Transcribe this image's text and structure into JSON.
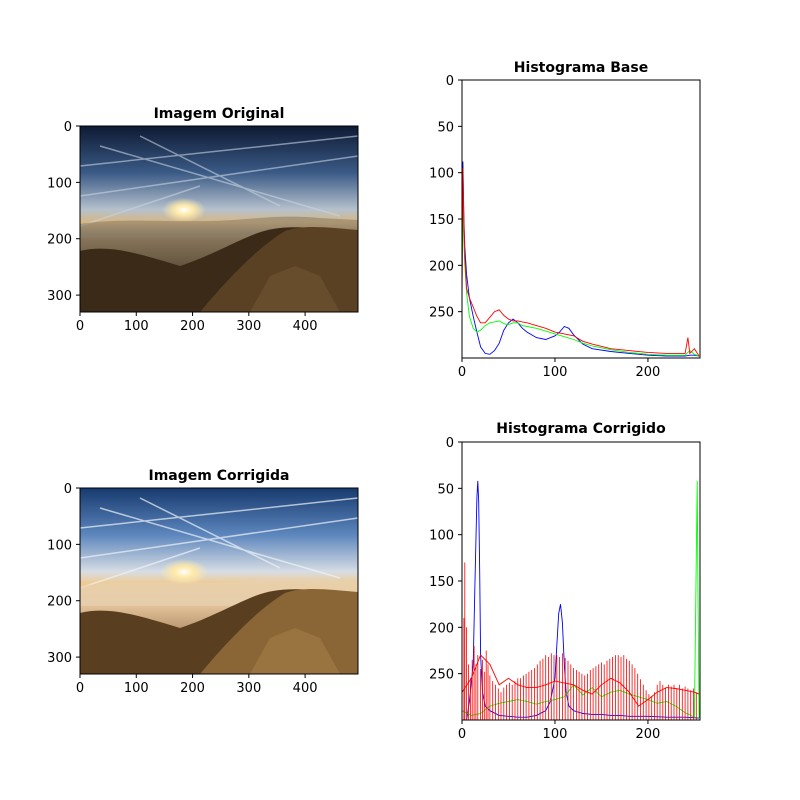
{
  "figure": {
    "background": "#ffffff"
  },
  "panels": [
    {
      "kind": "image",
      "id": "original",
      "title": "Imagem Original",
      "xlim": [
        0,
        494
      ],
      "ylim": [
        0,
        330
      ],
      "xticks": [
        0,
        100,
        200,
        300,
        400
      ],
      "yticks": [
        0,
        100,
        200,
        300
      ],
      "image_variant": "original"
    },
    {
      "kind": "image",
      "id": "corrected",
      "title": "Imagem Corrigida",
      "xlim": [
        0,
        494
      ],
      "ylim": [
        0,
        330
      ],
      "xticks": [
        0,
        100,
        200,
        300,
        400
      ],
      "yticks": [
        0,
        100,
        200,
        300
      ],
      "image_variant": "corrected"
    }
  ],
  "chart_data": [
    {
      "type": "line",
      "title": "Histograma Base",
      "xlim": [
        0,
        256
      ],
      "ylim": [
        0,
        300
      ],
      "y_inverted": true,
      "xticks": [
        0,
        100,
        200
      ],
      "yticks": [
        0,
        50,
        100,
        150,
        200,
        250
      ],
      "grid": false,
      "series": [
        {
          "color": "#0000ff",
          "x": [
            0,
            1,
            2,
            3,
            5,
            8,
            12,
            16,
            20,
            25,
            30,
            35,
            40,
            45,
            50,
            55,
            60,
            65,
            70,
            80,
            90,
            100,
            105,
            110,
            115,
            120,
            130,
            140,
            160,
            180,
            200,
            220,
            240,
            245,
            250,
            255
          ],
          "y": [
            200,
            88,
            150,
            180,
            210,
            235,
            255,
            272,
            288,
            295,
            296,
            292,
            284,
            270,
            262,
            258,
            262,
            268,
            272,
            278,
            280,
            276,
            272,
            266,
            268,
            275,
            285,
            290,
            293,
            295,
            297,
            298,
            298,
            297,
            297,
            298
          ]
        },
        {
          "color": "#00ff00",
          "x": [
            0,
            1,
            2,
            3,
            5,
            8,
            12,
            16,
            20,
            25,
            30,
            35,
            40,
            45,
            50,
            55,
            60,
            65,
            70,
            80,
            90,
            100,
            110,
            120,
            130,
            140,
            160,
            180,
            200,
            220,
            240,
            245,
            250,
            255
          ],
          "y": [
            220,
            140,
            175,
            200,
            230,
            255,
            268,
            272,
            270,
            265,
            262,
            261,
            260,
            263,
            264,
            262,
            262,
            265,
            266,
            268,
            271,
            274,
            277,
            280,
            284,
            287,
            291,
            294,
            296,
            297,
            297,
            292,
            296,
            298
          ]
        },
        {
          "color": "#ff0000",
          "x": [
            0,
            1,
            2,
            3,
            5,
            8,
            12,
            16,
            20,
            25,
            30,
            35,
            40,
            45,
            50,
            55,
            60,
            65,
            70,
            80,
            90,
            100,
            110,
            120,
            130,
            140,
            160,
            180,
            200,
            220,
            240,
            243,
            245,
            250,
            255
          ],
          "y": [
            240,
            95,
            155,
            190,
            225,
            235,
            245,
            255,
            262,
            262,
            256,
            250,
            248,
            254,
            258,
            260,
            260,
            261,
            262,
            265,
            268,
            272,
            274,
            276,
            282,
            285,
            290,
            292,
            294,
            295,
            295,
            278,
            295,
            290,
            298
          ]
        }
      ]
    },
    {
      "type": "line",
      "title": "Histograma Corrigido",
      "xlim": [
        0,
        256
      ],
      "ylim": [
        0,
        300
      ],
      "y_inverted": true,
      "xticks": [
        0,
        100,
        200
      ],
      "yticks": [
        50,
        100,
        150,
        200,
        250
      ],
      "extra_yticks_top": [
        0
      ],
      "grid": false,
      "series": [
        {
          "color": "#0000ff",
          "x": [
            0,
            5,
            8,
            12,
            14,
            16,
            17,
            18,
            19,
            20,
            22,
            25,
            30,
            40,
            50,
            60,
            70,
            80,
            90,
            95,
            100,
            102,
            104,
            106,
            108,
            110,
            112,
            115,
            120,
            130,
            140,
            150,
            160,
            170,
            180,
            200,
            220,
            240,
            255
          ],
          "y": [
            300,
            300,
            280,
            240,
            150,
            60,
            42,
            65,
            140,
            230,
            270,
            285,
            290,
            295,
            296,
            297,
            297,
            295,
            290,
            280,
            255,
            220,
            185,
            175,
            195,
            240,
            270,
            285,
            290,
            293,
            294,
            294,
            295,
            295,
            296,
            296,
            297,
            297,
            298
          ]
        },
        {
          "color": "#00ff00",
          "x": [
            0,
            10,
            20,
            30,
            40,
            50,
            60,
            70,
            80,
            90,
            100,
            110,
            120,
            130,
            140,
            150,
            160,
            170,
            180,
            190,
            200,
            210,
            220,
            230,
            240,
            250,
            253,
            254,
            255
          ],
          "y": [
            290,
            295,
            293,
            285,
            282,
            280,
            278,
            280,
            283,
            280,
            278,
            275,
            262,
            273,
            265,
            275,
            270,
            268,
            272,
            275,
            278,
            282,
            280,
            285,
            292,
            297,
            42,
            180,
            298
          ]
        },
        {
          "color": "#ff0000",
          "mode": "dense",
          "x": [
            0,
            10,
            20,
            30,
            40,
            50,
            60,
            70,
            80,
            90,
            100,
            110,
            120,
            130,
            140,
            150,
            160,
            170,
            180,
            190,
            200,
            210,
            220,
            230,
            240,
            250,
            255
          ],
          "y": [
            270,
            255,
            230,
            240,
            262,
            255,
            262,
            265,
            265,
            262,
            258,
            260,
            262,
            268,
            272,
            262,
            255,
            260,
            270,
            285,
            278,
            270,
            265,
            266,
            268,
            270,
            272
          ],
          "spikes": [
            [
              0,
              170
            ],
            [
              2,
              190
            ],
            [
              3,
              130
            ],
            [
              5,
              200
            ],
            [
              7,
              240
            ],
            [
              9,
              255
            ],
            [
              11,
              235
            ],
            [
              13,
              220
            ],
            [
              15,
              240
            ],
            [
              17,
              230
            ],
            [
              20,
              245
            ],
            [
              22,
              235
            ],
            [
              24,
              248
            ],
            [
              26,
              225
            ],
            [
              28,
              240
            ],
            [
              30,
              252
            ],
            [
              33,
              258
            ],
            [
              36,
              262
            ],
            [
              39,
              266
            ],
            [
              42,
              270
            ],
            [
              45,
              265
            ],
            [
              48,
              262
            ],
            [
              51,
              260
            ],
            [
              54,
              262
            ],
            [
              57,
              258
            ],
            [
              60,
              255
            ],
            [
              63,
              255
            ],
            [
              66,
              252
            ],
            [
              69,
              250
            ],
            [
              72,
              248
            ],
            [
              75,
              246
            ],
            [
              78,
              244
            ],
            [
              81,
              240
            ],
            [
              84,
              236
            ],
            [
              87,
              234
            ],
            [
              90,
              230
            ],
            [
              93,
              232
            ],
            [
              96,
              228
            ],
            [
              99,
              230
            ],
            [
              102,
              230
            ],
            [
              105,
              232
            ],
            [
              108,
              228
            ],
            [
              111,
              233
            ],
            [
              114,
              236
            ],
            [
              117,
              240
            ],
            [
              120,
              244
            ],
            [
              123,
              246
            ],
            [
              126,
              248
            ],
            [
              129,
              250
            ],
            [
              132,
              252
            ],
            [
              135,
              250
            ],
            [
              138,
              246
            ],
            [
              141,
              244
            ],
            [
              144,
              242
            ],
            [
              147,
              240
            ],
            [
              150,
              238
            ],
            [
              153,
              240
            ],
            [
              156,
              236
            ],
            [
              159,
              234
            ],
            [
              162,
              232
            ],
            [
              165,
              230
            ],
            [
              168,
              230
            ],
            [
              171,
              232
            ],
            [
              174,
              230
            ],
            [
              177,
              234
            ],
            [
              180,
              236
            ],
            [
              183,
              240
            ],
            [
              186,
              244
            ],
            [
              189,
              250
            ],
            [
              192,
              256
            ],
            [
              195,
              262
            ],
            [
              198,
              268
            ],
            [
              201,
              272
            ],
            [
              204,
              274
            ],
            [
              207,
              270
            ],
            [
              210,
              262
            ],
            [
              213,
              258
            ],
            [
              216,
              262
            ],
            [
              219,
              265
            ],
            [
              222,
              262
            ],
            [
              225,
              264
            ],
            [
              228,
              262
            ],
            [
              231,
              266
            ],
            [
              234,
              262
            ],
            [
              237,
              266
            ],
            [
              240,
              264
            ],
            [
              243,
              266
            ],
            [
              246,
              268
            ],
            [
              249,
              266
            ],
            [
              252,
              270
            ]
          ]
        }
      ]
    }
  ]
}
